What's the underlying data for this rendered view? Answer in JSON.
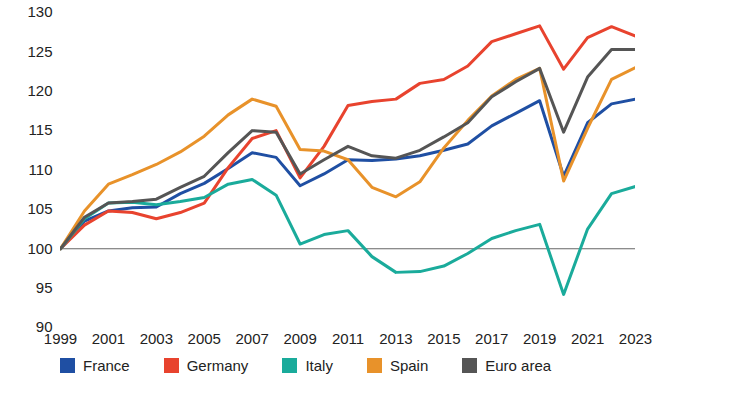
{
  "chart_data": {
    "type": "line",
    "x": [
      1999,
      2000,
      2001,
      2002,
      2003,
      2004,
      2005,
      2006,
      2007,
      2008,
      2009,
      2010,
      2011,
      2012,
      2013,
      2014,
      2015,
      2016,
      2017,
      2018,
      2019,
      2020,
      2021,
      2022,
      2023
    ],
    "series": [
      {
        "name": "France",
        "color": "#1f4fa3",
        "values": [
          100,
          103.5,
          104.8,
          105.2,
          105.3,
          107,
          108.3,
          110.2,
          112.2,
          111.6,
          108,
          109.5,
          111.3,
          111.2,
          111.4,
          111.8,
          112.5,
          113.3,
          115.6,
          117.2,
          118.8,
          109.2,
          116,
          118.4,
          119
        ]
      },
      {
        "name": "Germany",
        "color": "#e8432e",
        "values": [
          100,
          103,
          104.8,
          104.6,
          103.8,
          104.6,
          105.8,
          110.3,
          114,
          115,
          109,
          113,
          118.2,
          118.7,
          119,
          121,
          121.5,
          123.2,
          126.3,
          127.3,
          128.3,
          122.8,
          126.8,
          128.2,
          127
        ]
      },
      {
        "name": "Italy",
        "color": "#1aab9b",
        "values": [
          100,
          103.8,
          105.8,
          105.9,
          105.6,
          106,
          106.5,
          108.2,
          108.8,
          106.8,
          100.6,
          101.8,
          102.3,
          99,
          97,
          97.1,
          97.8,
          99.4,
          101.3,
          102.3,
          103.1,
          94.2,
          102.5,
          107,
          107.9
        ]
      },
      {
        "name": "Spain",
        "color": "#e8922a",
        "values": [
          100,
          104.8,
          108.2,
          109.4,
          110.7,
          112.3,
          114.3,
          117,
          119,
          118.1,
          112.6,
          112.4,
          111.3,
          107.8,
          106.6,
          108.5,
          112.8,
          116.3,
          119.4,
          121.5,
          122.9,
          108.6,
          115.3,
          121.5,
          123
        ]
      },
      {
        "name": "Euro area",
        "color": "#555555",
        "values": [
          100,
          104,
          105.8,
          106,
          106.3,
          107.8,
          109.2,
          112.2,
          115,
          114.8,
          109.5,
          111.3,
          113,
          111.8,
          111.5,
          112.5,
          114.2,
          116,
          119.3,
          121.2,
          122.9,
          114.8,
          121.8,
          125.3,
          125.3
        ]
      }
    ],
    "xlim": [
      1999,
      2023
    ],
    "xticks": [
      1999,
      2001,
      2003,
      2005,
      2007,
      2009,
      2011,
      2013,
      2015,
      2017,
      2019,
      2021,
      2023
    ],
    "ylim": [
      90,
      130
    ],
    "yticks": [
      90,
      95,
      100,
      105,
      110,
      115,
      120,
      125,
      130
    ],
    "reference_line": 100,
    "grid": false,
    "legend": "bottom"
  }
}
